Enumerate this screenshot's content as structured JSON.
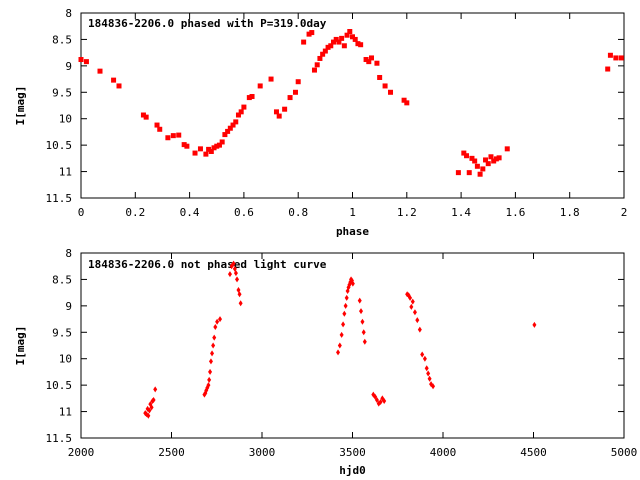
{
  "chart_data": [
    {
      "type": "scatter",
      "title": "184836-2206.0 phased with P=319.0day",
      "xlabel": "phase",
      "ylabel": "I[mag]",
      "xlim": [
        0,
        2
      ],
      "ylim": [
        11.5,
        8
      ],
      "y_inverted": true,
      "grid": false,
      "x_ticks": [
        "0",
        "0.2",
        "0.4",
        "0.6",
        "0.8",
        "1",
        "1.2",
        "1.4",
        "1.6",
        "1.8",
        "2"
      ],
      "y_ticks": [
        "8",
        "8.5",
        "9",
        "9.5",
        "10",
        "10.5",
        "11",
        "11.5"
      ],
      "marker_color": "#ff0000",
      "series": [
        {
          "x": [
            0.0,
            0.02,
            0.07,
            0.12,
            0.14,
            0.23,
            0.24,
            0.28,
            0.29,
            0.32,
            0.34,
            0.36,
            0.38,
            0.39,
            0.42,
            0.44,
            0.46,
            0.47,
            0.48,
            0.49,
            0.5,
            0.51,
            0.52,
            0.53,
            0.54,
            0.55,
            0.56,
            0.57,
            0.58,
            0.59,
            0.6,
            0.62,
            0.63,
            0.66,
            0.7,
            0.72,
            0.73,
            0.75,
            0.77,
            0.79,
            0.8,
            0.82,
            0.84,
            0.85,
            0.86,
            0.87,
            0.88,
            0.89,
            0.9,
            0.91,
            0.92,
            0.93,
            0.94,
            0.95,
            0.96,
            0.97,
            0.98,
            0.99,
            1.0,
            1.01,
            1.02,
            1.03,
            1.05,
            1.06,
            1.07,
            1.09,
            1.1,
            1.12,
            1.14,
            1.19,
            1.2,
            1.39,
            1.41,
            1.42,
            1.43,
            1.44,
            1.45,
            1.46,
            1.47,
            1.48,
            1.49,
            1.5,
            1.51,
            1.52,
            1.53,
            1.54,
            1.57,
            1.94,
            1.95,
            1.97,
            1.99
          ],
          "y": [
            8.88,
            8.92,
            9.1,
            9.27,
            9.38,
            9.93,
            9.97,
            10.12,
            10.2,
            10.36,
            10.32,
            10.31,
            10.49,
            10.52,
            10.65,
            10.57,
            10.67,
            10.58,
            10.62,
            10.55,
            10.52,
            10.5,
            10.44,
            10.3,
            10.24,
            10.18,
            10.12,
            10.06,
            9.93,
            9.87,
            9.78,
            9.6,
            9.58,
            9.38,
            9.25,
            9.87,
            9.95,
            9.82,
            9.6,
            9.5,
            9.3,
            8.55,
            8.4,
            8.37,
            9.08,
            8.98,
            8.86,
            8.78,
            8.72,
            8.65,
            8.62,
            8.55,
            8.5,
            8.55,
            8.48,
            8.62,
            8.42,
            8.35,
            8.45,
            8.5,
            8.58,
            8.6,
            8.88,
            8.92,
            8.85,
            8.95,
            9.22,
            9.38,
            9.5,
            9.65,
            9.7,
            11.02,
            10.65,
            10.7,
            11.02,
            10.75,
            10.8,
            10.9,
            11.05,
            10.95,
            10.78,
            10.85,
            10.72,
            10.8,
            10.76,
            10.74,
            10.57,
            9.06,
            8.8,
            8.85,
            8.85
          ]
        }
      ]
    },
    {
      "type": "scatter",
      "title": "184836-2206.0 not phased light curve",
      "xlabel": "hjd0",
      "ylabel": "I[mag]",
      "xlim": [
        2000,
        5000
      ],
      "ylim": [
        11.5,
        8
      ],
      "y_inverted": true,
      "grid": false,
      "x_ticks": [
        "2000",
        "2500",
        "3000",
        "3500",
        "4000",
        "4500",
        "5000"
      ],
      "y_ticks": [
        "8",
        "8.5",
        "9",
        "9.5",
        "10",
        "10.5",
        "11",
        "11.5"
      ],
      "marker_color": "#ff0000",
      "series": [
        {
          "x": [
            2355,
            2362,
            2368,
            2372,
            2378,
            2383,
            2390,
            2395,
            2401,
            2410,
            2682,
            2687,
            2692,
            2698,
            2704,
            2708,
            2713,
            2718,
            2724,
            2730,
            2736,
            2742,
            2752,
            2768,
            2823,
            2832,
            2843,
            2850,
            2856,
            2862,
            2870,
            2876,
            2882,
            3420,
            3430,
            3440,
            3448,
            3455,
            3462,
            3468,
            3473,
            3478,
            3483,
            3488,
            3492,
            3497,
            3502,
            3540,
            3547,
            3555,
            3562,
            3568,
            3615,
            3625,
            3635,
            3645,
            3655,
            3665,
            3675,
            3802,
            3810,
            3818,
            3825,
            3833,
            3845,
            3858,
            3872,
            3885,
            3900,
            3910,
            3918,
            3926,
            3934,
            3945,
            4505
          ],
          "y": [
            11.03,
            11.05,
            10.95,
            11.08,
            10.98,
            10.86,
            10.92,
            10.8,
            10.78,
            10.58,
            10.68,
            10.65,
            10.6,
            10.55,
            10.5,
            10.4,
            10.25,
            10.05,
            9.9,
            9.75,
            9.6,
            9.4,
            9.3,
            9.25,
            8.4,
            8.25,
            8.2,
            8.3,
            8.38,
            8.5,
            8.7,
            8.78,
            8.95,
            9.88,
            9.75,
            9.55,
            9.35,
            9.15,
            9.0,
            8.85,
            8.72,
            8.65,
            8.6,
            8.55,
            8.5,
            8.52,
            8.58,
            8.9,
            9.1,
            9.3,
            9.5,
            9.68,
            10.68,
            10.72,
            10.78,
            10.85,
            10.82,
            10.75,
            10.8,
            8.78,
            8.8,
            8.85,
            9.02,
            8.92,
            9.12,
            9.27,
            9.45,
            9.92,
            10.0,
            10.18,
            10.28,
            10.38,
            10.48,
            10.52,
            9.36
          ]
        }
      ]
    }
  ]
}
